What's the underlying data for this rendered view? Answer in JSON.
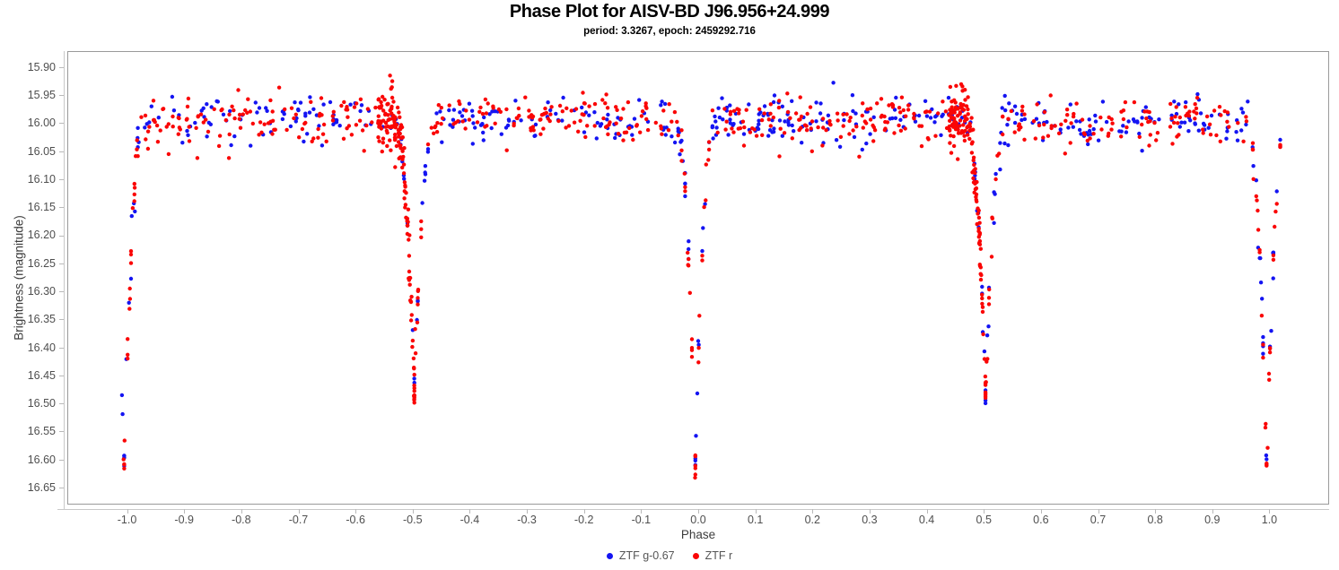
{
  "page": {
    "background": "#ffffff"
  },
  "chart_data": {
    "type": "scatter",
    "title": "Phase Plot for AISV-BD J96.956+24.999",
    "subtitle": "period: 3.3267, epoch: 2459292.716",
    "xlabel": "Phase",
    "ylabel": "Brightness (magnitude)",
    "xlim": [
      -1.103,
      1.103
    ],
    "ylim": [
      15.873,
      16.679
    ],
    "y_axis_inverted": true,
    "grid": false,
    "x_ticks": [
      -1.0,
      -0.9,
      -0.8,
      -0.7,
      -0.6,
      -0.5,
      -0.4,
      -0.3,
      -0.2,
      -0.1,
      0.0,
      0.1,
      0.2,
      0.3,
      0.4,
      0.5,
      0.6,
      0.7,
      0.8,
      0.9,
      1.0
    ],
    "y_ticks": [
      15.9,
      15.95,
      16.0,
      16.05,
      16.1,
      16.15,
      16.2,
      16.25,
      16.3,
      16.35,
      16.4,
      16.45,
      16.5,
      16.55,
      16.6,
      16.65
    ],
    "legend_position": "bottom-center",
    "legend": [
      {
        "label": "ZTF g-0.67",
        "color": "#1414f2"
      },
      {
        "label": "ZTF r",
        "color": "#fa0505"
      }
    ],
    "readings": {
      "baseline_mag": 16.0,
      "baseline_scatter_mag": 0.02,
      "primary_eclipse_phases": [
        -1.0,
        0.0,
        1.0
      ],
      "primary_eclipse_minimum_mag": 16.61,
      "secondary_eclipse_phases": [
        -0.5,
        0.5
      ],
      "secondary_eclipse_minimum_mag": 16.48,
      "phase_coverage": [
        -1.01,
        1.02
      ]
    },
    "model": {
      "seed": 7,
      "phase_range": [
        -1.01,
        1.02
      ],
      "baseline_mag": 15.995,
      "baseline_sigma": 0.021,
      "point_radius": 2.2,
      "quantize_step": 0.006,
      "primary_eclipse": {
        "centers": [
          -1.005,
          -0.005,
          0.995
        ],
        "depth": 0.615,
        "half_width": 0.035,
        "exponent": 2.2
      },
      "secondary_eclipse": {
        "centers": [
          -0.497,
          0.503
        ],
        "depth": 0.485,
        "half_width": 0.035,
        "exponent": 2.2
      },
      "series": [
        {
          "name": "ZTF g-0.67",
          "color": "#1414f2",
          "baseline_count": 450,
          "primary_extra": 15,
          "secondary_extra": 10,
          "clumps": []
        },
        {
          "name": "ZTF r",
          "color": "#fa0505",
          "baseline_count": 560,
          "primary_extra": 24,
          "secondary_extra": 18,
          "clumps": [
            {
              "center": -0.528,
              "width": 0.066,
              "count": 120,
              "mag_sigma": 0.026
            },
            {
              "center": 0.472,
              "width": 0.066,
              "count": 120,
              "mag_sigma": 0.026
            }
          ]
        }
      ]
    }
  }
}
